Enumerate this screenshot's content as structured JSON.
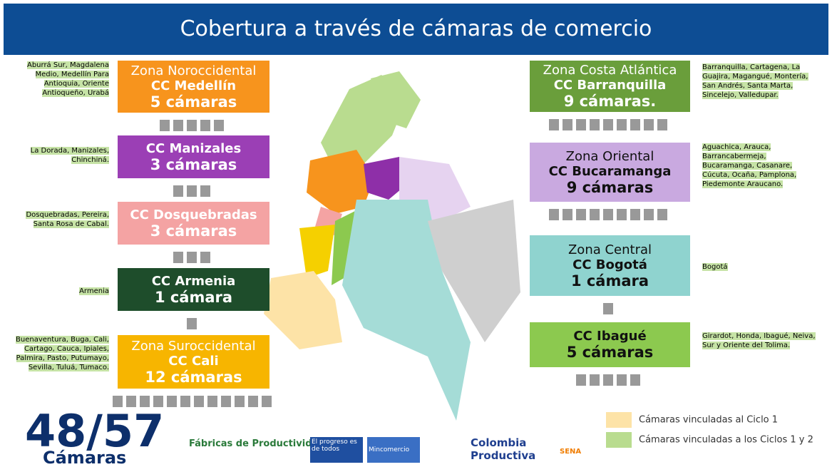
{
  "title": "Cobertura a través de cámaras de comercio",
  "left_zones": [
    {
      "zone": "Zona Noroccidental",
      "chamber": "CC Medellín",
      "count": "5 cámaras",
      "cities": "Aburrá Sur, Magdalena Medio, Medellín Para Antioquia, Oriente Antioqueño, Urabá"
    },
    {
      "chamber": "CC Manizales",
      "count": "3 cámaras",
      "cities": "La Dorada, Manizales, Chinchiná."
    },
    {
      "chamber": "CC Dosquebradas",
      "count": "3 cámaras",
      "cities": "Dosquebradas, Pereira, Santa Rosa de Cabal."
    },
    {
      "chamber": "CC Armenia",
      "count": "1 cámara",
      "cities": "Armenia"
    },
    {
      "zone": "Zona Suroccidental",
      "chamber": "CC Cali",
      "count": "12 cámaras",
      "cities": "Buenaventura, Buga, Cali, Cartago, Cauca, Ipiales, Palmira, Pasto, Putumayo, Sevilla, Tuluá, Tumaco."
    }
  ],
  "right_zones": [
    {
      "zone": "Zona Costa Atlántica",
      "chamber": "CC Barranquilla",
      "count": "9 cámaras.",
      "cities": "Barranquilla, Cartagena, La Guajira, Magangué, Montería, San Andrés, Santa Marta, Sincelejo, Valledupar."
    },
    {
      "zone": "Zona Oriental",
      "chamber": "CC Bucaramanga",
      "count": "9 cámaras",
      "cities": "Aguachica, Arauca, Barrancabermeja, Bucaramanga, Casanare, Cúcuta, Ocaña, Pamplona, Piedemonte Araucano."
    },
    {
      "zone": "Zona Central",
      "chamber": "CC Bogotá",
      "count": "1 cámara",
      "cities": "Bogotá"
    },
    {
      "chamber": "CC Ibagué",
      "count": "5 cámaras",
      "cities": "Girardot, Honda, Ibagué, Neiva, Sur y Oriente del Tolima."
    }
  ],
  "legend": [
    {
      "label": "Cámaras vinculadas al Ciclo 1",
      "color": "#fde3a7"
    },
    {
      "label": "Cámaras vinculadas a los Ciclos 1 y 2",
      "color": "#b9dc8f"
    }
  ],
  "total": {
    "ratio": "48/57",
    "label": "Cámaras"
  },
  "logos": [
    "Fábricas de Productividad",
    "El progreso es de todos",
    "Mincomercio",
    "Colombia Productiva",
    "SENA"
  ]
}
